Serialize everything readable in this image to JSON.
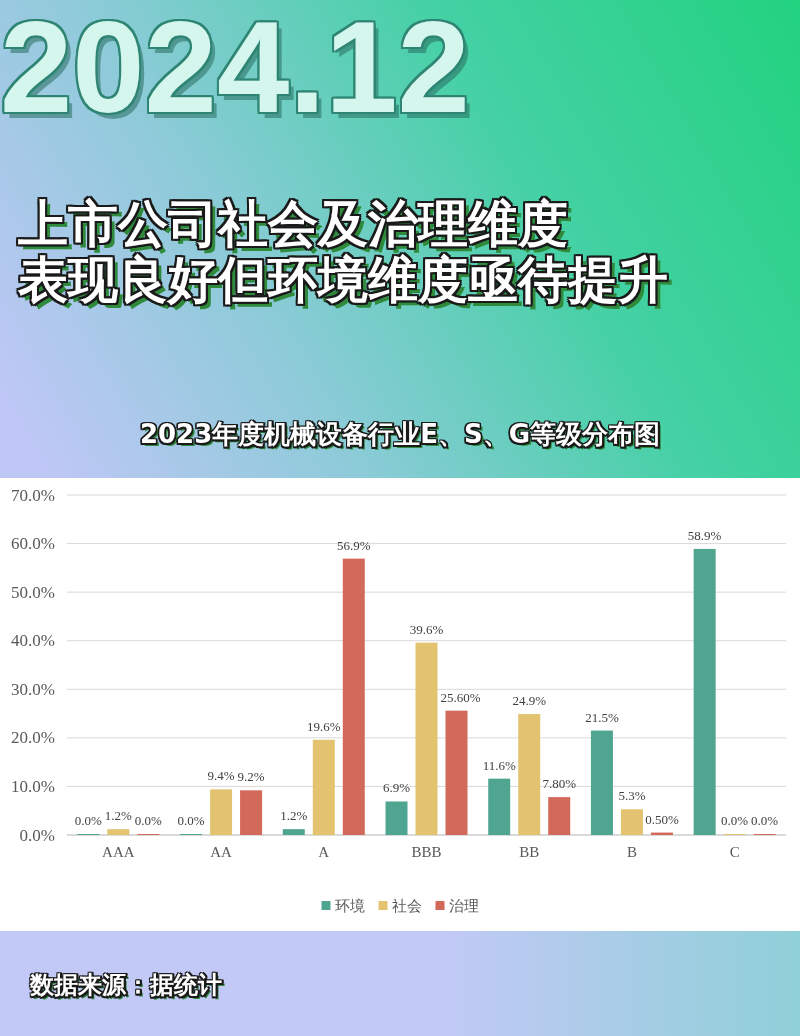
{
  "chart_data": {
    "type": "bar",
    "title": "上市公司社会及治理维度表现良好但环境维度亟待提升",
    "subtitle": "2023年度机械设备行业E、S、G等级分布图",
    "annotations": [
      "2024.12",
      "数据来源：据统计"
    ],
    "categories": [
      "AAA",
      "AA",
      "A",
      "BBB",
      "BB",
      "B",
      "C"
    ],
    "series": [
      {
        "name": "环境",
        "color": "#4fa58f",
        "values": [
          0.0,
          0.0,
          1.2,
          6.9,
          11.6,
          21.5,
          58.9
        ],
        "value_labels": [
          "0.0%",
          "0.0%",
          "1.2%",
          "6.9%",
          "11.6%",
          "21.5%",
          "58.9%"
        ]
      },
      {
        "name": "社会",
        "color": "#e3c370",
        "values": [
          1.2,
          9.4,
          19.6,
          39.6,
          24.9,
          5.3,
          0.0
        ],
        "value_labels": [
          "1.2%",
          "9.4%",
          "19.6%",
          "39.6%",
          "24.9%",
          "5.3%",
          "0.0%"
        ]
      },
      {
        "name": "治理",
        "color": "#d2695a",
        "values": [
          0.0,
          9.2,
          56.9,
          25.6,
          7.8,
          0.5,
          0.0
        ],
        "value_labels": [
          "0.0%",
          "9.2%",
          "56.9%",
          "25.60%",
          "7.80%",
          "0.50%",
          "0.0%"
        ]
      }
    ],
    "ylim": [
      0,
      70
    ],
    "yticks": [
      {
        "value": 0,
        "label": "0.0%"
      },
      {
        "value": 10,
        "label": "10.0%"
      },
      {
        "value": 20,
        "label": "20.0%"
      },
      {
        "value": 30,
        "label": "30.0%"
      },
      {
        "value": 40,
        "label": "40.0%"
      },
      {
        "value": 50,
        "label": "50.0%"
      },
      {
        "value": 60,
        "label": "60.0%"
      },
      {
        "value": 70,
        "label": "70.0%"
      }
    ],
    "grid": "y",
    "legend": "bottom"
  }
}
